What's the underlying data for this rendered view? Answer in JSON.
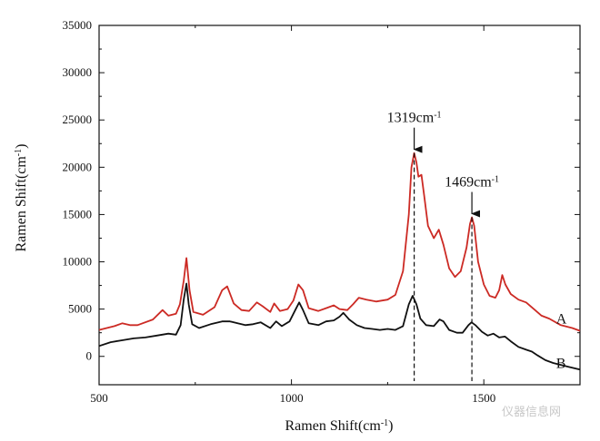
{
  "chart_data": {
    "type": "line",
    "title": "",
    "xlabel": "Ramen Shift(cm",
    "xlabel_sup": "-1",
    "xlabel_tail": ")",
    "ylabel": "Ramen Shift(cm",
    "ylabel_sup": "-1",
    "ylabel_tail": ")",
    "xlim": [
      500,
      1750
    ],
    "ylim": [
      -3000,
      35000
    ],
    "x_ticks": [
      500,
      1000,
      1500
    ],
    "y_ticks": [
      0,
      5000,
      10000,
      15000,
      20000,
      25000,
      30000,
      35000
    ],
    "grid": false,
    "series": [
      {
        "name": "A",
        "color": "#cc2a24",
        "points": [
          [
            500,
            2800
          ],
          [
            540,
            3200
          ],
          [
            560,
            3500
          ],
          [
            580,
            3300
          ],
          [
            600,
            3300
          ],
          [
            640,
            3900
          ],
          [
            665,
            4900
          ],
          [
            680,
            4300
          ],
          [
            700,
            4500
          ],
          [
            710,
            5500
          ],
          [
            720,
            8000
          ],
          [
            727,
            10400
          ],
          [
            735,
            7000
          ],
          [
            745,
            4700
          ],
          [
            770,
            4400
          ],
          [
            800,
            5200
          ],
          [
            820,
            7000
          ],
          [
            833,
            7400
          ],
          [
            850,
            5600
          ],
          [
            870,
            4900
          ],
          [
            890,
            4800
          ],
          [
            910,
            5700
          ],
          [
            925,
            5300
          ],
          [
            945,
            4700
          ],
          [
            955,
            5600
          ],
          [
            970,
            4800
          ],
          [
            990,
            5000
          ],
          [
            1005,
            5900
          ],
          [
            1018,
            7600
          ],
          [
            1030,
            7000
          ],
          [
            1045,
            5100
          ],
          [
            1070,
            4800
          ],
          [
            1090,
            5100
          ],
          [
            1110,
            5400
          ],
          [
            1125,
            5000
          ],
          [
            1145,
            4900
          ],
          [
            1160,
            5500
          ],
          [
            1175,
            6200
          ],
          [
            1195,
            6000
          ],
          [
            1220,
            5800
          ],
          [
            1250,
            6000
          ],
          [
            1270,
            6500
          ],
          [
            1290,
            9000
          ],
          [
            1305,
            15000
          ],
          [
            1312,
            20000
          ],
          [
            1319,
            21500
          ],
          [
            1325,
            20500
          ],
          [
            1330,
            19000
          ],
          [
            1338,
            19200
          ],
          [
            1345,
            17000
          ],
          [
            1355,
            13800
          ],
          [
            1370,
            12500
          ],
          [
            1383,
            13400
          ],
          [
            1395,
            11800
          ],
          [
            1410,
            9300
          ],
          [
            1425,
            8400
          ],
          [
            1440,
            9000
          ],
          [
            1455,
            11500
          ],
          [
            1464,
            14000
          ],
          [
            1469,
            14700
          ],
          [
            1475,
            13800
          ],
          [
            1485,
            10000
          ],
          [
            1500,
            7600
          ],
          [
            1515,
            6400
          ],
          [
            1530,
            6200
          ],
          [
            1540,
            7000
          ],
          [
            1548,
            8600
          ],
          [
            1556,
            7600
          ],
          [
            1570,
            6600
          ],
          [
            1590,
            6000
          ],
          [
            1610,
            5700
          ],
          [
            1630,
            5000
          ],
          [
            1650,
            4300
          ],
          [
            1670,
            4000
          ],
          [
            1700,
            3300
          ],
          [
            1730,
            3000
          ],
          [
            1750,
            2700
          ]
        ]
      },
      {
        "name": "B",
        "color": "#111111",
        "points": [
          [
            500,
            1100
          ],
          [
            530,
            1500
          ],
          [
            560,
            1700
          ],
          [
            590,
            1900
          ],
          [
            620,
            2000
          ],
          [
            650,
            2200
          ],
          [
            680,
            2400
          ],
          [
            700,
            2300
          ],
          [
            712,
            3300
          ],
          [
            720,
            6000
          ],
          [
            727,
            7700
          ],
          [
            733,
            5500
          ],
          [
            742,
            3400
          ],
          [
            760,
            3000
          ],
          [
            790,
            3400
          ],
          [
            820,
            3700
          ],
          [
            840,
            3700
          ],
          [
            860,
            3500
          ],
          [
            880,
            3300
          ],
          [
            900,
            3400
          ],
          [
            920,
            3600
          ],
          [
            945,
            3000
          ],
          [
            960,
            3700
          ],
          [
            975,
            3200
          ],
          [
            995,
            3700
          ],
          [
            1010,
            4900
          ],
          [
            1020,
            5700
          ],
          [
            1030,
            4900
          ],
          [
            1045,
            3500
          ],
          [
            1070,
            3300
          ],
          [
            1090,
            3700
          ],
          [
            1110,
            3800
          ],
          [
            1125,
            4200
          ],
          [
            1135,
            4600
          ],
          [
            1150,
            3900
          ],
          [
            1170,
            3300
          ],
          [
            1190,
            3000
          ],
          [
            1210,
            2900
          ],
          [
            1230,
            2800
          ],
          [
            1250,
            2900
          ],
          [
            1270,
            2800
          ],
          [
            1290,
            3200
          ],
          [
            1305,
            5500
          ],
          [
            1315,
            6400
          ],
          [
            1325,
            5500
          ],
          [
            1335,
            4000
          ],
          [
            1350,
            3300
          ],
          [
            1370,
            3200
          ],
          [
            1385,
            3900
          ],
          [
            1395,
            3700
          ],
          [
            1410,
            2800
          ],
          [
            1430,
            2500
          ],
          [
            1445,
            2500
          ],
          [
            1460,
            3300
          ],
          [
            1468,
            3600
          ],
          [
            1478,
            3300
          ],
          [
            1495,
            2600
          ],
          [
            1510,
            2200
          ],
          [
            1525,
            2400
          ],
          [
            1540,
            2000
          ],
          [
            1555,
            2100
          ],
          [
            1570,
            1600
          ],
          [
            1590,
            1000
          ],
          [
            1610,
            700
          ],
          [
            1625,
            500
          ],
          [
            1640,
            100
          ],
          [
            1660,
            -400
          ],
          [
            1680,
            -700
          ],
          [
            1700,
            -900
          ],
          [
            1720,
            -1100
          ],
          [
            1750,
            -1400
          ]
        ]
      }
    ],
    "annotations": [
      {
        "x": 1319,
        "text": "1319cm",
        "sup": "-1"
      },
      {
        "x": 1469,
        "text": "1469cm",
        "sup": "-1"
      }
    ],
    "watermark": "仪器信息网"
  }
}
